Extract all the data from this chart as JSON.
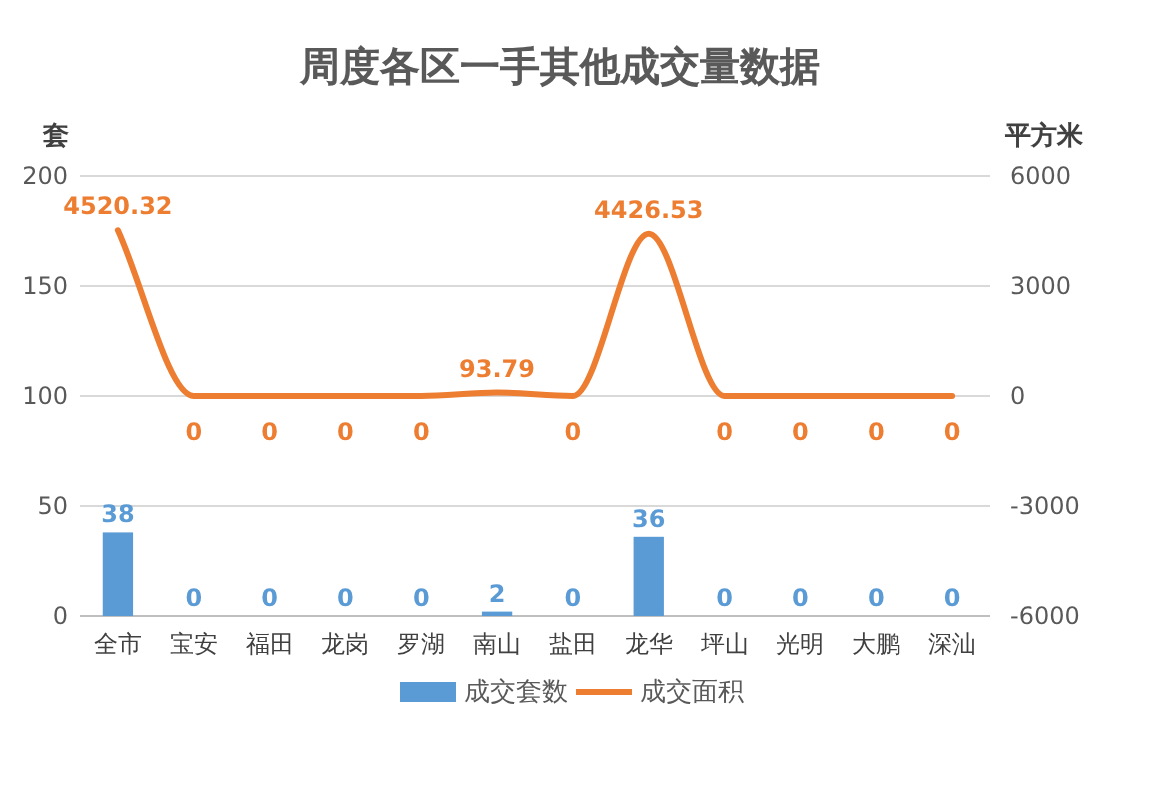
{
  "chart_data": {
    "type": "bar",
    "title": "周度各区一手其他成交量数据",
    "categories": [
      "全市",
      "宝安",
      "福田",
      "龙岗",
      "罗湖",
      "南山",
      "盐田",
      "龙华",
      "坪山",
      "光明",
      "大鹏",
      "深汕"
    ],
    "series": [
      {
        "name": "成交套数",
        "color": "#5b9bd5",
        "values": [
          38,
          0,
          0,
          0,
          0,
          2,
          0,
          36,
          0,
          0,
          0,
          0
        ]
      },
      {
        "name": "成交面积",
        "type": "line",
        "axis": "y2",
        "color": "#ed7d31",
        "values": [
          4520.32,
          0,
          0,
          0,
          0,
          93.79,
          0,
          4426.53,
          0,
          0,
          0,
          0
        ]
      }
    ],
    "ylabel": "套",
    "y2label": "平方米",
    "ylim": [
      0,
      200
    ],
    "yticks": [
      0,
      50,
      100,
      150,
      200
    ],
    "y2lim": [
      -6000,
      6000
    ],
    "y2ticks": [
      -6000,
      -3000,
      0,
      3000,
      6000
    ],
    "grid": "y",
    "legend": "bottom",
    "data_labels": true
  }
}
